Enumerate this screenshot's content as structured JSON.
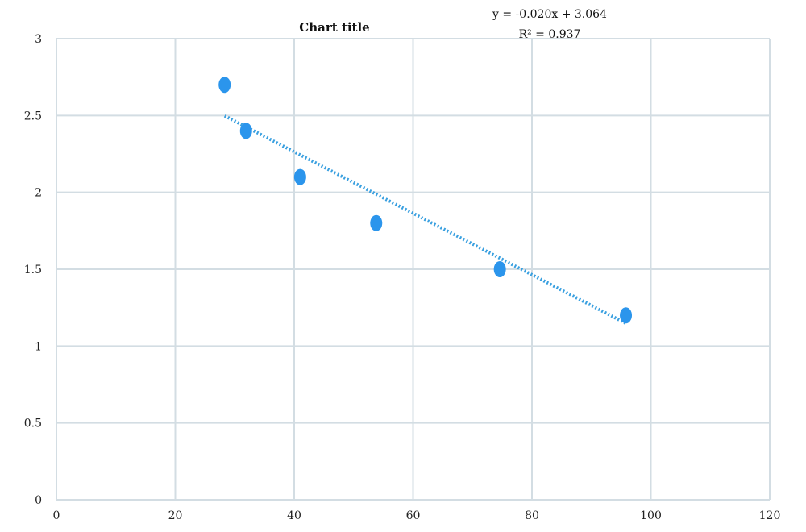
{
  "chart_data": {
    "type": "scatter",
    "title": "Chart title",
    "xlabel": "",
    "ylabel": "",
    "xlim": [
      0,
      120
    ],
    "ylim": [
      0,
      3
    ],
    "x_ticks": [
      0,
      20,
      40,
      60,
      80,
      100,
      120
    ],
    "y_ticks": [
      0,
      0.5,
      1,
      1.5,
      2,
      2.5,
      3
    ],
    "x_tick_labels": [
      "0",
      "20",
      "40",
      "60",
      "80",
      "100",
      "120"
    ],
    "y_tick_labels": [
      "0",
      "0.5",
      "1",
      "1.5",
      "2",
      "2.5",
      "3"
    ],
    "grid": true,
    "series": [
      {
        "marker_color": "#2b95ec",
        "points": [
          {
            "x": 28.3,
            "y": 2.7
          },
          {
            "x": 31.9,
            "y": 2.4
          },
          {
            "x": 41.0,
            "y": 2.1
          },
          {
            "x": 53.8,
            "y": 1.8
          },
          {
            "x": 74.6,
            "y": 1.5
          },
          {
            "x": 95.8,
            "y": 1.2
          }
        ]
      }
    ],
    "trendline": {
      "type": "linear",
      "slope": -0.02,
      "intercept": 3.064,
      "x_range": [
        28.3,
        95.8
      ],
      "style": "dotted",
      "color": "#3aa0e0",
      "equation_text": "y = -0.020x + 3.064",
      "r2_text": "R² = 0.937"
    },
    "grid_color": "#d3dde3"
  }
}
